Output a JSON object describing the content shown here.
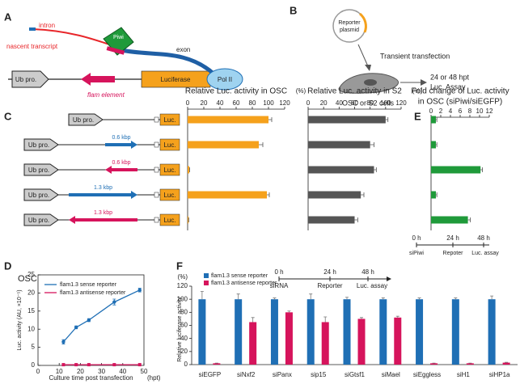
{
  "panels": [
    "A",
    "B",
    "C",
    "D",
    "E",
    "F"
  ],
  "diagram_a": {
    "intron": "intron",
    "transcript": "nascent transcript",
    "piwi": "Piwi",
    "exon": "exon",
    "promoter": "Ub pro.",
    "reporter": "Luciferase",
    "polymerase": "Pol II",
    "element": "flam element"
  },
  "diagram_b": {
    "plasmid_1": "Reporter",
    "plasmid_2": "plasmid",
    "step": "Transient transfection",
    "cells": "OSC or S2 cells",
    "assay_1": "24 or 48 hpt",
    "assay_2": "Luc. Assay"
  },
  "constructs": {
    "promoter": "Ub pro.",
    "reporter": "Luc.",
    "short": "0.6 kbp",
    "long": "1.3 kbp"
  },
  "timeline_e": {
    "t0": "0 h",
    "t1": "24 h",
    "t2": "48 h",
    "s0": "siPiwi",
    "s1": "Repoter",
    "s2": "Luc. assay"
  },
  "timeline_f": {
    "t0": "0 h",
    "t1": "24 h",
    "t2": "48 h",
    "s0": "siRNA",
    "s1": "Reporter",
    "s2": "Luc. assay"
  },
  "chart_data": [
    {
      "type": "hbar",
      "title": "Relative Luc. activity in OSC",
      "unit": "(%)",
      "color": "#f5a11c",
      "values": [
        100,
        88,
        2,
        98,
        1
      ],
      "errors": [
        4,
        5,
        0.5,
        3,
        0.5
      ],
      "xlim": [
        0,
        120
      ],
      "xticks": [
        0,
        20,
        40,
        60,
        80,
        100,
        120
      ]
    },
    {
      "type": "hbar",
      "title": "Relative Luc. activity in S2",
      "unit": "(%)",
      "color": "#555555",
      "values": [
        100,
        80,
        85,
        68,
        60
      ],
      "errors": [
        3,
        5,
        3,
        4,
        4
      ],
      "xlim": [
        0,
        120
      ],
      "xticks": [
        0,
        20,
        40,
        60,
        80,
        100,
        120
      ]
    },
    {
      "type": "hbar",
      "title": "Fold change of Luc. activity",
      "subtitle": "in OSC (siPiwi/siEGFP)",
      "color": "#1f9a3a",
      "values": [
        1,
        1,
        10.2,
        1,
        7.6
      ],
      "errors": [
        0.2,
        0.2,
        0.4,
        0.2,
        0.5
      ],
      "xlim": [
        0,
        12
      ],
      "xticks": [
        0,
        2,
        4,
        6,
        8,
        10,
        12
      ]
    },
    {
      "type": "line",
      "title": "OSC",
      "ylabel": "Luc. activity (AU, ×10⁻⁵)",
      "xlabel": "Culture time post transfection",
      "xunit": "(hpt)",
      "x": [
        12,
        18,
        24,
        36,
        48
      ],
      "series": [
        {
          "name": "flam1.3 sense reporter",
          "color": "#1f6fb5",
          "values": [
            6.5,
            10.5,
            12.5,
            17.5,
            20.8
          ],
          "errors": [
            0.6,
            0.4,
            0.4,
            0.8,
            0.5
          ]
        },
        {
          "name": "flam1.3 antisense reporter",
          "color": "#d6145c",
          "values": [
            0.2,
            0.2,
            0.2,
            0.2,
            0.2
          ]
        }
      ],
      "xlim": [
        0,
        50
      ],
      "xticks": [
        0,
        10,
        20,
        30,
        40,
        50
      ],
      "ylim": [
        0,
        25
      ],
      "yticks": [
        0,
        5,
        10,
        15,
        20,
        25
      ]
    },
    {
      "type": "bar",
      "ylabel": "Relative luciferase activity",
      "yunit": "(%)",
      "categories": [
        "siEGFP",
        "siNxf2",
        "siPanx",
        "sip15",
        "siGtsf1",
        "siMael",
        "siEggless",
        "siH1",
        "siHP1a"
      ],
      "series": [
        {
          "name": "flam1.3 sense reporter",
          "color": "#1f6fb5",
          "values": [
            100,
            100,
            100,
            100,
            100,
            100,
            100,
            100,
            100
          ],
          "errors": [
            12,
            8,
            2,
            8,
            3,
            2,
            2,
            2,
            5
          ]
        },
        {
          "name": "flam1.3 antisense reporter",
          "color": "#d6145c",
          "values": [
            2,
            65,
            80,
            65,
            70,
            72,
            2,
            2,
            3
          ],
          "errors": [
            0.3,
            7,
            2,
            8,
            2,
            2,
            0.3,
            0.3,
            0.5
          ]
        }
      ],
      "ylim": [
        0,
        120
      ],
      "yticks": [
        0,
        20,
        40,
        60,
        80,
        100,
        120
      ]
    }
  ]
}
